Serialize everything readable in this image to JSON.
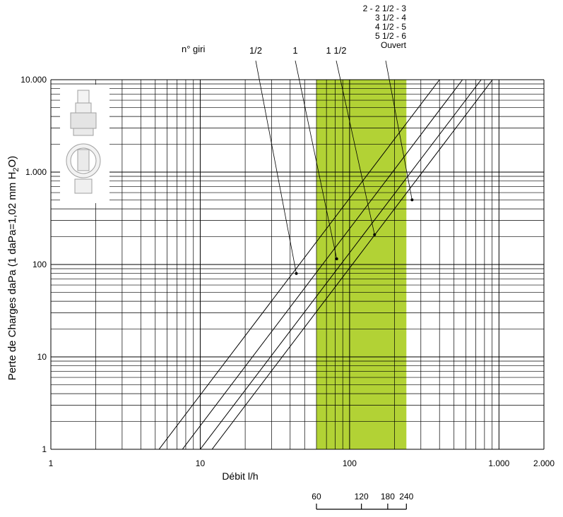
{
  "chart_data": {
    "type": "line",
    "x_scale": "log",
    "y_scale": "log",
    "xlim": [
      1,
      2000
    ],
    "ylim": [
      1,
      10000
    ],
    "ylabel_prefix": "Perte de Charges daPa (1 daPa=1,02 mm H",
    "ylabel_sub": "2",
    "ylabel_suffix": "O)",
    "xlabel": "Débit l/h",
    "x_tick_labels": [
      {
        "value": 1,
        "label": "1"
      },
      {
        "value": 10,
        "label": "10"
      },
      {
        "value": 100,
        "label": "100"
      },
      {
        "value": 1000,
        "label": "1.000"
      },
      {
        "value": 2000,
        "label": "2.000"
      }
    ],
    "y_tick_labels": [
      {
        "value": 1,
        "label": "1"
      },
      {
        "value": 10,
        "label": "10"
      },
      {
        "value": 100,
        "label": "100"
      },
      {
        "value": 1000,
        "label": "1.000"
      },
      {
        "value": 10000,
        "label": "10.000"
      }
    ],
    "highlight_band": {
      "from": 60,
      "to": 240,
      "color": "#b2d235"
    },
    "highlight_ticks": [
      "60",
      "120",
      "180",
      "240"
    ],
    "highlight_tick_values": [
      60,
      120,
      180,
      240
    ],
    "turns_label": "n° giri",
    "series": [
      {
        "name": "1/2",
        "x": [
          5.3,
          400
        ],
        "y": [
          1,
          10000
        ],
        "pointer_x": 44,
        "pointer_y": 80
      },
      {
        "name": "1",
        "x": [
          7.6,
          570
        ],
        "y": [
          1,
          10000
        ],
        "pointer_x": 82,
        "pointer_y": 115
      },
      {
        "name": "1 1/2",
        "x": [
          10,
          760
        ],
        "y": [
          1,
          10000
        ],
        "pointer_x": 147,
        "pointer_y": 210
      },
      {
        "name": "Ouvert",
        "x": [
          12,
          905
        ],
        "y": [
          1,
          10000
        ],
        "pointer_x": 262,
        "pointer_y": 500
      }
    ],
    "open_settings_labels": [
      "2 - 2 1/2 - 3",
      "3 1/2 - 4",
      "4 1/2 - 5",
      "5 1/2 - 6",
      "Ouvert"
    ],
    "grid": true
  },
  "colors": {
    "band": "#b2d235",
    "grid": "#000000",
    "background": "#ffffff"
  },
  "inset_icon": "valve-product-icon"
}
